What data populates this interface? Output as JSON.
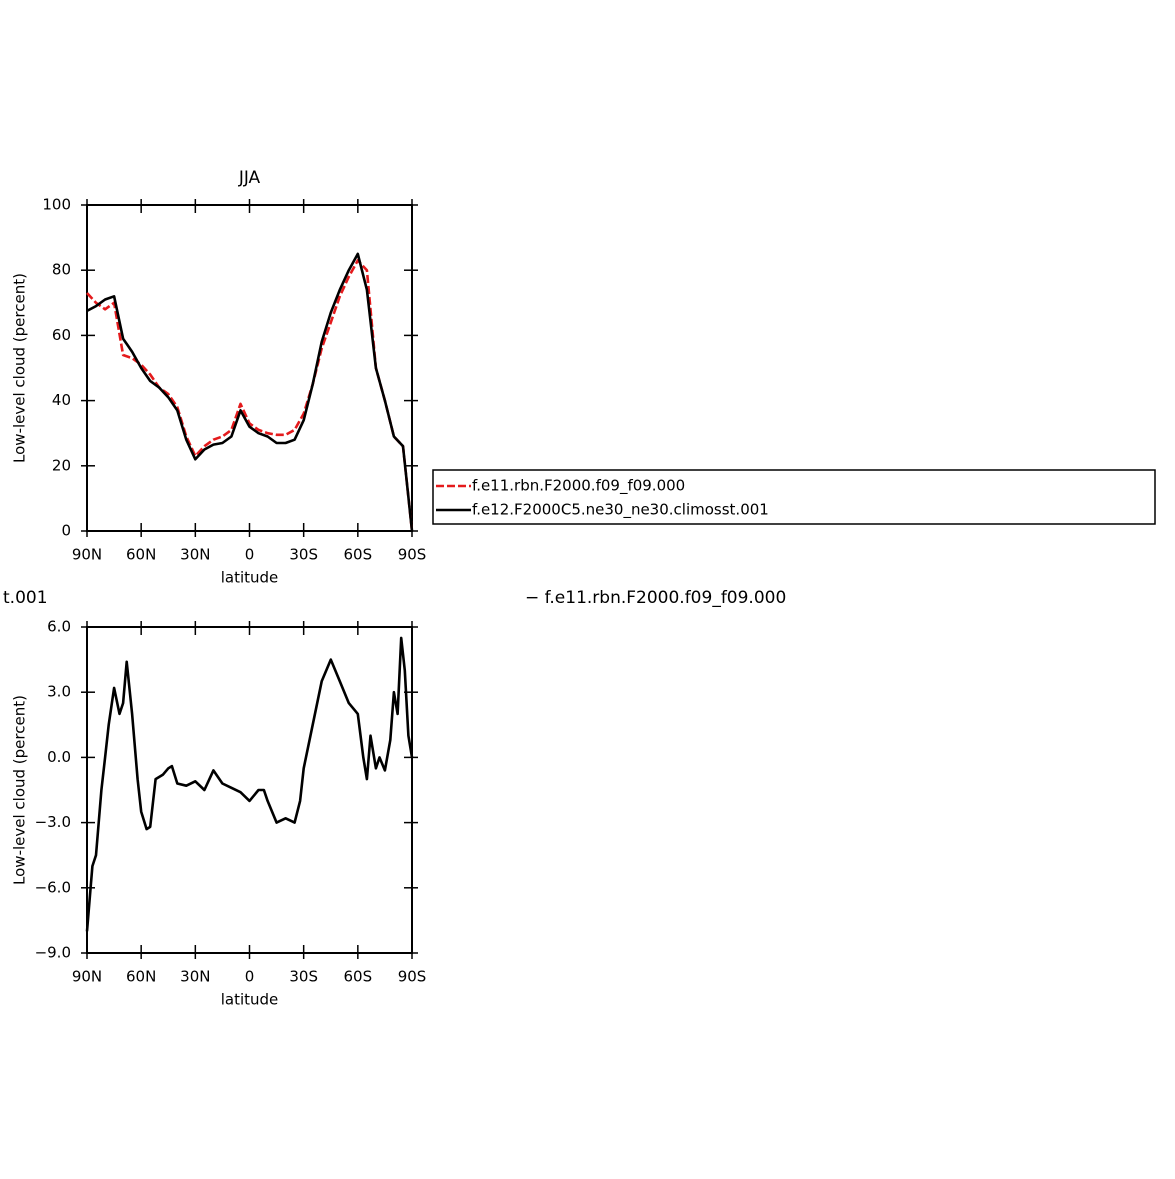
{
  "chart_data": [
    {
      "type": "line",
      "title": "JJA",
      "xlabel": "latitude",
      "ylabel": "Low-level cloud (percent)",
      "x": [
        90,
        85,
        80,
        75,
        70,
        65,
        60,
        55,
        50,
        45,
        40,
        35,
        30,
        25,
        20,
        15,
        10,
        5,
        0,
        -5,
        -10,
        -15,
        -20,
        -25,
        -30,
        -35,
        -40,
        -45,
        -50,
        -55,
        -60,
        -65,
        -70,
        -75,
        -80,
        -85,
        -90
      ],
      "series": [
        {
          "name": "f.e11.rbn.F2000.f09_f09.000",
          "color": "#e41a1c",
          "dashed": true,
          "values": [
            73,
            70,
            68,
            70,
            54,
            53,
            51,
            48,
            44,
            42,
            38,
            29,
            23,
            26,
            28,
            29,
            31,
            39,
            33,
            31,
            30,
            29.5,
            29.5,
            31,
            36,
            45,
            56,
            64,
            72,
            78,
            83,
            80,
            50,
            40,
            29,
            26,
            0
          ]
        },
        {
          "name": "f.e12.F2000C5.ne30_ne30.climosst.001",
          "color": "#000000",
          "dashed": false,
          "values": [
            67.5,
            69,
            71,
            72,
            59,
            55,
            50,
            46,
            44,
            41,
            37,
            28,
            22,
            25,
            26.5,
            27,
            29,
            37,
            32,
            30,
            29,
            27,
            27,
            28,
            34,
            45,
            58,
            67,
            74,
            80,
            85,
            74,
            50,
            40,
            29,
            26,
            0
          ]
        }
      ],
      "xlim": [
        90,
        -90
      ],
      "xticks": [
        {
          "value": 90,
          "label": "90N"
        },
        {
          "value": 60,
          "label": "60N"
        },
        {
          "value": 30,
          "label": "30N"
        },
        0,
        {
          "value": -30,
          "label": "30S"
        },
        {
          "value": -60,
          "label": "60S"
        },
        {
          "value": -90,
          "label": "90S"
        }
      ],
      "ylim": [
        0,
        100
      ],
      "yticks": [
        0,
        20,
        40,
        60,
        80,
        100
      ],
      "legend": "right"
    },
    {
      "type": "line",
      "title_parts": [
        "t.001",
        "− f.e11.rbn.F2000.f09_f09.000"
      ],
      "xlabel": "latitude",
      "ylabel": "Low-level cloud (percent)",
      "x": [
        90,
        87,
        85,
        82,
        80,
        78,
        75,
        72,
        70,
        68,
        65,
        62,
        60,
        57,
        55,
        52,
        48,
        45,
        43,
        40,
        35,
        30,
        25,
        20,
        15,
        10,
        5,
        0,
        -5,
        -8,
        -10,
        -15,
        -20,
        -25,
        -28,
        -30,
        -35,
        -40,
        -45,
        -50,
        -55,
        -58,
        -60,
        -63,
        -65,
        -67,
        -70,
        -72,
        -75,
        -78,
        -80,
        -82,
        -84,
        -86,
        -88,
        -90
      ],
      "series": [
        {
          "color": "#000000",
          "dashed": false,
          "values": [
            -8,
            -5,
            -4.5,
            -1.5,
            0,
            1.5,
            3.2,
            2,
            2.5,
            4.4,
            2,
            -1,
            -2.5,
            -3.3,
            -3.2,
            -1,
            -0.8,
            -0.5,
            -0.4,
            -1.2,
            -1.3,
            -1.1,
            -1.5,
            -0.6,
            -1.2,
            -1.4,
            -1.6,
            -2,
            -1.5,
            -1.5,
            -2,
            -3,
            -2.8,
            -3,
            -2,
            -0.5,
            1.5,
            3.5,
            4.5,
            3.5,
            2.5,
            2.2,
            2,
            0,
            -1,
            1,
            -0.5,
            0,
            -0.6,
            0.8,
            3,
            2,
            5.5,
            4,
            1,
            0
          ]
        }
      ],
      "xlim": [
        90,
        -90
      ],
      "xticks": [
        {
          "value": 90,
          "label": "90N"
        },
        {
          "value": 60,
          "label": "60N"
        },
        {
          "value": 30,
          "label": "30N"
        },
        0,
        {
          "value": -30,
          "label": "30S"
        },
        {
          "value": -60,
          "label": "60S"
        },
        {
          "value": -90,
          "label": "90S"
        }
      ],
      "ylim": [
        -9,
        6
      ],
      "yticks": [
        {
          "value": -9,
          "label": "−9.0"
        },
        {
          "value": -6,
          "label": "−6.0"
        },
        {
          "value": -3,
          "label": "−3.0"
        },
        {
          "value": 0,
          "label": "0.0"
        },
        {
          "value": 3,
          "label": "3.0"
        },
        {
          "value": 6,
          "label": "6.0"
        }
      ]
    }
  ]
}
